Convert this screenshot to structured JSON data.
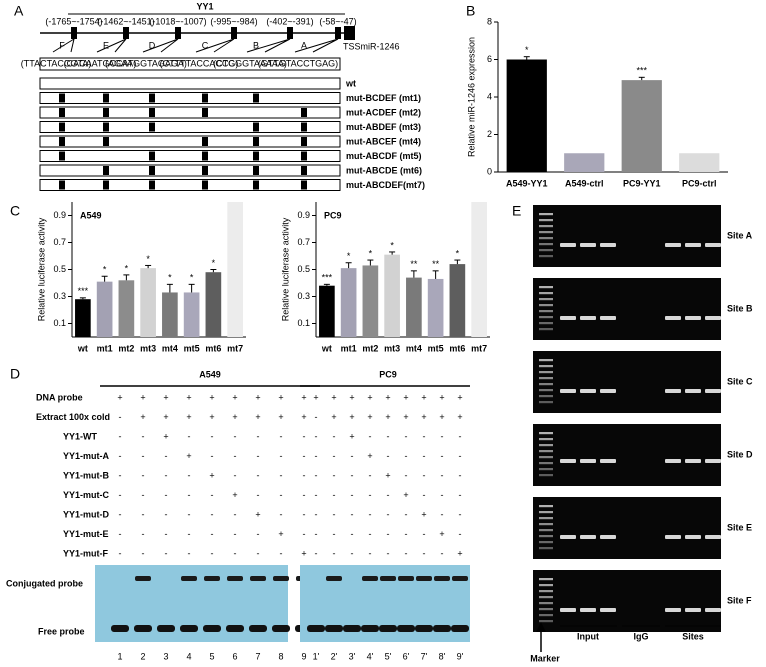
{
  "panel_labels": [
    "A",
    "B",
    "C",
    "D",
    "E"
  ],
  "panel_a": {
    "title": "YY1",
    "positions": [
      "(-1765~-1754)",
      "(-1462~-1451)",
      "(-1018~-1007)",
      "(-995~-984)",
      "(-402~-391)",
      "(-58~-47)"
    ],
    "sites": [
      "F",
      "E",
      "D",
      "C",
      "B",
      "A"
    ],
    "tss_label": "TSSmiR-1246",
    "sequences": [
      "(TTACTACCGTA)",
      "(CACAATGCCAT)",
      "(AGAAGGTAGAGA)",
      "(CTTTTACCACCG)",
      "(CTGGGTAAAAA)",
      "(GTTGTACCTGAG)"
    ],
    "constructs": [
      "wt",
      "mut-BCDEF (mt1)",
      "mut-ACDEF (mt2)",
      "mut-ABDEF (mt3)",
      "mut-ABCEF (mt4)",
      "mut-ABCDF (mt5)",
      "mut-ABCDE (mt6)",
      "mut-ABCDEF(mt7)"
    ]
  },
  "chart_data": [
    {
      "type": "bar",
      "y_label": "Relative miR-1246 expression",
      "categories": [
        "A549-YY1",
        "A549-ctrl",
        "PC9-YY1",
        "PC9-ctrl"
      ],
      "values": [
        6.0,
        1.0,
        4.9,
        1.0
      ],
      "errors": [
        0.15,
        0,
        0.15,
        0
      ],
      "annotations": [
        "*",
        null,
        "***",
        null
      ],
      "colors": [
        "#000000",
        "#a9a7b8",
        "#8a8a8a",
        "#dcdcdc"
      ],
      "ylim": [
        0,
        8
      ],
      "yticks": [
        0,
        2,
        4,
        6,
        8
      ]
    },
    {
      "type": "bar",
      "title": "A549",
      "y_label": "Relative luciferase activity",
      "categories": [
        "wt",
        "mt1",
        "mt2",
        "mt3",
        "mt4",
        "mt5",
        "mt6",
        "mt7"
      ],
      "values": [
        0.28,
        0.41,
        0.42,
        0.51,
        0.33,
        0.33,
        0.48,
        1.0
      ],
      "errors": [
        0.01,
        0.04,
        0.04,
        0.02,
        0.06,
        0.06,
        0.02,
        0
      ],
      "annotations": [
        "***",
        "*",
        "*",
        "*",
        "*",
        "*",
        "*",
        null
      ],
      "colors": [
        "#000000",
        "#a3a1b3",
        "#8c8c8c",
        "#d2d2d2",
        "#7a7a7a",
        "#a9a7ba",
        "#5e5e5e",
        "#ececec"
      ],
      "ylim": [
        0,
        1.0
      ],
      "yticks": [
        0.1,
        0.3,
        0.5,
        0.7,
        0.9
      ]
    },
    {
      "type": "bar",
      "title": "PC9",
      "y_label": "Relative luciferase activity",
      "categories": [
        "wt",
        "mt1",
        "mt2",
        "mt3",
        "mt4",
        "mt5",
        "mt6",
        "mt7"
      ],
      "values": [
        0.38,
        0.51,
        0.53,
        0.61,
        0.44,
        0.43,
        0.54,
        1.0
      ],
      "errors": [
        0.01,
        0.04,
        0.04,
        0.02,
        0.05,
        0.06,
        0.03,
        0
      ],
      "annotations": [
        "***",
        "*",
        "*",
        "*",
        "**",
        "**",
        "*",
        null
      ],
      "colors": [
        "#000000",
        "#a3a1b3",
        "#8c8c8c",
        "#d2d2d2",
        "#7a7a7a",
        "#a9a7ba",
        "#5e5e5e",
        "#ececec"
      ],
      "ylim": [
        0,
        1.0
      ],
      "yticks": [
        0.1,
        0.3,
        0.5,
        0.7,
        0.9
      ]
    }
  ],
  "panel_d": {
    "row_labels": [
      "DNA probe",
      "Extract 100x cold",
      "YY1-WT",
      "YY1-mut-A",
      "YY1-mut-B",
      "YY1-mut-C",
      "YY1-mut-D",
      "YY1-mut-E",
      "YY1-mut-F"
    ],
    "groups": [
      {
        "name": "A549",
        "lanes": [
          "1",
          "2",
          "3",
          "4",
          "5",
          "6",
          "7",
          "8",
          "9"
        ],
        "rows": [
          [
            "+",
            "+",
            "+",
            "+",
            "+",
            "+",
            "+",
            "+",
            "+"
          ],
          [
            "-",
            "+",
            "+",
            "+",
            "+",
            "+",
            "+",
            "+",
            "+"
          ],
          [
            "-",
            "-",
            "+",
            "-",
            "-",
            "-",
            "-",
            "-",
            "-"
          ],
          [
            "-",
            "-",
            "-",
            "+",
            "-",
            "-",
            "-",
            "-",
            "-"
          ],
          [
            "-",
            "-",
            "-",
            "-",
            "+",
            "-",
            "-",
            "-",
            "-"
          ],
          [
            "-",
            "-",
            "-",
            "-",
            "-",
            "+",
            "-",
            "-",
            "-"
          ],
          [
            "-",
            "-",
            "-",
            "-",
            "-",
            "-",
            "+",
            "-",
            "-"
          ],
          [
            "-",
            "-",
            "-",
            "-",
            "-",
            "-",
            "-",
            "+",
            "-"
          ],
          [
            "-",
            "-",
            "-",
            "-",
            "-",
            "-",
            "-",
            "-",
            "+"
          ]
        ]
      },
      {
        "name": "PC9",
        "lanes": [
          "1'",
          "2'",
          "3'",
          "4'",
          "5'",
          "6'",
          "7'",
          "8'",
          "9'"
        ],
        "rows": [
          [
            "+",
            "+",
            "+",
            "+",
            "+",
            "+",
            "+",
            "+",
            "+"
          ],
          [
            "-",
            "+",
            "+",
            "+",
            "+",
            "+",
            "+",
            "+",
            "+"
          ],
          [
            "-",
            "-",
            "+",
            "-",
            "-",
            "-",
            "-",
            "-",
            "-"
          ],
          [
            "-",
            "-",
            "-",
            "+",
            "-",
            "-",
            "-",
            "-",
            "-"
          ],
          [
            "-",
            "-",
            "-",
            "-",
            "+",
            "-",
            "-",
            "-",
            "-"
          ],
          [
            "-",
            "-",
            "-",
            "-",
            "-",
            "+",
            "-",
            "-",
            "-"
          ],
          [
            "-",
            "-",
            "-",
            "-",
            "-",
            "-",
            "+",
            "-",
            "-"
          ],
          [
            "-",
            "-",
            "-",
            "-",
            "-",
            "-",
            "-",
            "+",
            "-"
          ],
          [
            "-",
            "-",
            "-",
            "-",
            "-",
            "-",
            "-",
            "-",
            "+"
          ]
        ]
      }
    ],
    "band_labels": [
      "Conjugated  probe",
      "Free probe"
    ]
  },
  "panel_e": {
    "sites": [
      "Site A",
      "Site B",
      "Site C",
      "Site D",
      "Site E",
      "Site F"
    ],
    "groups": [
      "Input",
      "IgG",
      "Sites"
    ],
    "marker": "Marker"
  }
}
